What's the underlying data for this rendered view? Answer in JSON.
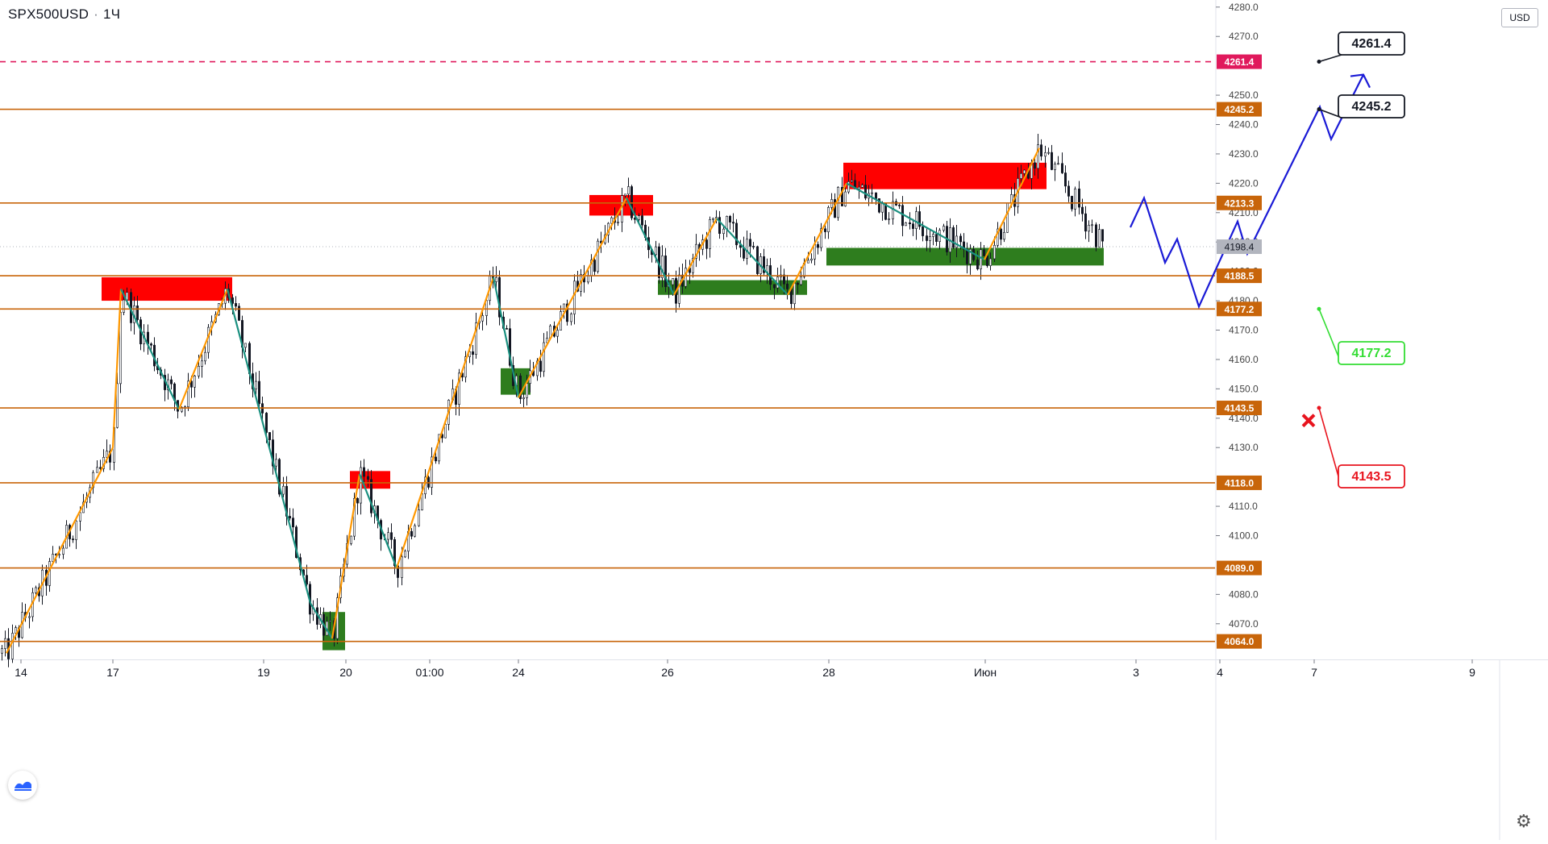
{
  "header": {
    "symbol": "SPX500USD",
    "interval": "1Ч"
  },
  "price_axis": {
    "currency": "USD"
  },
  "icons": {
    "logo": "tradingview-logo-icon",
    "settings": "gear-icon"
  },
  "colors": {
    "level_line": "#c8650a",
    "target_line": "#e0195c",
    "support_box": "#2e7d1e",
    "resistance_box": "#ff0000",
    "zigzag_up": "#ff9800",
    "zigzag_down": "#1a9080",
    "projection": "#1a1ad6",
    "stop_red": "#e8141e",
    "target_green": "#33dd33"
  },
  "chart_data": {
    "type": "candlestick",
    "y_range": [
      4058,
      4282
    ],
    "y_ticks": [
      4070,
      4080,
      4100,
      4110,
      4130,
      4140,
      4150,
      4160,
      4170,
      4180,
      4190,
      4200,
      4210,
      4220,
      4230,
      4240,
      4250,
      4270,
      4280
    ],
    "y_tick_format": "0.0",
    "x_ticks": [
      "14",
      "17",
      "19",
      "20",
      "01:00",
      "24",
      "26",
      "28",
      "Июн",
      "3",
      "4",
      "7",
      "9"
    ],
    "current_price": 4198.4,
    "levels": [
      {
        "value": 4261.4,
        "label": "4261.4",
        "style": "dashed",
        "kind": "target"
      },
      {
        "value": 4245.2,
        "label": "4245.2",
        "style": "solid",
        "kind": "level"
      },
      {
        "value": 4213.3,
        "label": "4213.3",
        "style": "solid",
        "kind": "level"
      },
      {
        "value": 4188.5,
        "label": "4188.5",
        "style": "solid",
        "kind": "level"
      },
      {
        "value": 4177.2,
        "label": "4177.2",
        "style": "solid",
        "kind": "level"
      },
      {
        "value": 4143.5,
        "label": "4143.5",
        "style": "solid",
        "kind": "level"
      },
      {
        "value": 4118.0,
        "label": "4118.0",
        "style": "solid",
        "kind": "level"
      },
      {
        "value": 4089.0,
        "label": "4089.0",
        "style": "solid",
        "kind": "level"
      },
      {
        "value": 4064.0,
        "label": "4064.0",
        "style": "solid",
        "kind": "level"
      }
    ],
    "callouts": [
      {
        "label": "4261.4",
        "kind": "target"
      },
      {
        "label": "4245.2",
        "kind": "target"
      },
      {
        "label": "4177.2",
        "kind": "support"
      },
      {
        "label": "4143.5",
        "kind": "stop"
      }
    ],
    "zones": [
      {
        "kind": "resistance",
        "from": 4180,
        "to": 4188
      },
      {
        "kind": "resistance",
        "from": 4116,
        "to": 4122
      },
      {
        "kind": "support",
        "from": 4061,
        "to": 4074
      },
      {
        "kind": "support",
        "from": 4148,
        "to": 4157
      },
      {
        "kind": "resistance",
        "from": 4209,
        "to": 4216
      },
      {
        "kind": "support",
        "from": 4182,
        "to": 4187
      },
      {
        "kind": "resistance",
        "from": 4218,
        "to": 4227
      },
      {
        "kind": "support",
        "from": 4192,
        "to": 4198
      }
    ],
    "zigzag": [
      4060,
      4130,
      4184,
      4143,
      4184,
      4077,
      4065,
      4121,
      4089,
      4188,
      4147,
      4215,
      4182,
      4208,
      4182,
      4220,
      4194,
      4232
    ],
    "projection": [
      4205,
      4215,
      4193,
      4201,
      4178,
      4207,
      4196,
      4246,
      4235,
      4257
    ]
  }
}
